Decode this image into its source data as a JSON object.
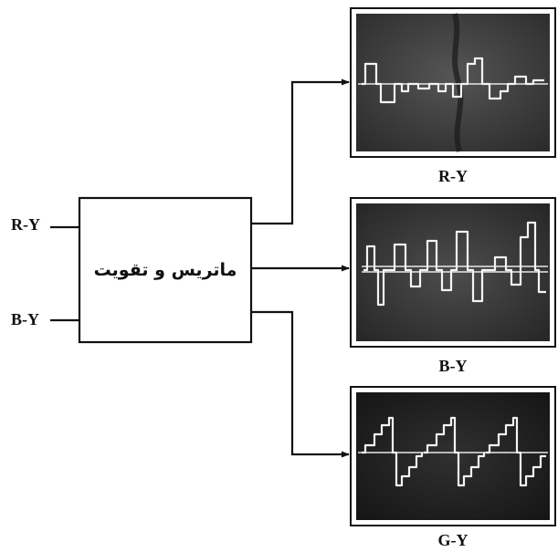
{
  "inputs": {
    "top": "R-Y",
    "bottom": "B-Y"
  },
  "block": {
    "label": "ماتریس و تقویت"
  },
  "outputs": [
    {
      "caption": "R-Y"
    },
    {
      "caption": "B-Y"
    },
    {
      "caption": "G-Y"
    }
  ],
  "colors": {
    "line": "#111111",
    "screen_dark": "#3a3a3a",
    "trace": "#f4f4f4"
  }
}
